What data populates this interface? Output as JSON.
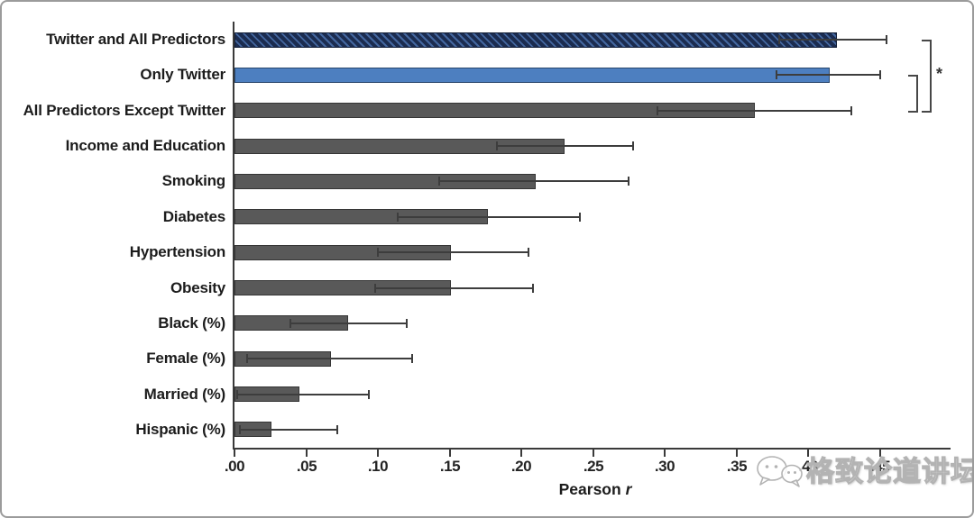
{
  "watermark": {
    "text": "格致论道讲坛",
    "logo": "speech-bubbles-logo"
  },
  "chart_data": {
    "type": "bar",
    "orientation": "horizontal",
    "title": "",
    "xlabel": "Pearson r",
    "xlabel_prefix": "Pearson",
    "xlabel_var": "r",
    "xlim": [
      0,
      0.5
    ],
    "grid": false,
    "xticks": [
      {
        "label": ".00",
        "value": 0.0
      },
      {
        "label": ".05",
        "value": 0.05
      },
      {
        "label": ".10",
        "value": 0.1
      },
      {
        "label": ".15",
        "value": 0.15
      },
      {
        "label": ".20",
        "value": 0.2
      },
      {
        "label": ".25",
        "value": 0.25
      },
      {
        "label": ".30",
        "value": 0.3
      },
      {
        "label": ".35",
        "value": 0.35
      },
      {
        "label": ".40",
        "value": 0.4
      },
      {
        "label": ".45",
        "value": 0.45
      }
    ],
    "bars": [
      {
        "label": "Twitter and All Predictors",
        "value": 0.42,
        "ci": [
          0.38,
          0.455
        ],
        "style": "navy-hatched"
      },
      {
        "label": "Only Twitter",
        "value": 0.415,
        "ci": [
          0.378,
          0.45
        ],
        "style": "blue"
      },
      {
        "label": "All Predictors Except Twitter",
        "value": 0.363,
        "ci": [
          0.295,
          0.43
        ],
        "style": "gray"
      },
      {
        "label": "Income and Education",
        "value": 0.23,
        "ci": [
          0.183,
          0.278
        ],
        "style": "gray"
      },
      {
        "label": "Smoking",
        "value": 0.21,
        "ci": [
          0.143,
          0.275
        ],
        "style": "gray"
      },
      {
        "label": "Diabetes",
        "value": 0.177,
        "ci": [
          0.114,
          0.241
        ],
        "style": "gray"
      },
      {
        "label": "Hypertension",
        "value": 0.151,
        "ci": [
          0.1,
          0.205
        ],
        "style": "gray"
      },
      {
        "label": "Obesity",
        "value": 0.151,
        "ci": [
          0.098,
          0.208
        ],
        "style": "gray"
      },
      {
        "label": "Black (%)",
        "value": 0.079,
        "ci": [
          0.039,
          0.12
        ],
        "style": "gray"
      },
      {
        "label": "Female (%)",
        "value": 0.067,
        "ci": [
          0.009,
          0.124
        ],
        "style": "gray"
      },
      {
        "label": "Married (%)",
        "value": 0.045,
        "ci": [
          0.002,
          0.094
        ],
        "style": "gray"
      },
      {
        "label": "Hispanic (%)",
        "value": 0.026,
        "ci": [
          0.004,
          0.072
        ],
        "style": "gray"
      }
    ],
    "significance": {
      "symbol": "*",
      "comparisons": [
        {
          "from": "Twitter and All Predictors",
          "to": "All Predictors Except Twitter",
          "bracket": "outer"
        },
        {
          "from": "Only Twitter",
          "to": "All Predictors Except Twitter",
          "bracket": "inner"
        }
      ]
    },
    "colors": {
      "navy": "#1b2c50",
      "navy_hatch": "#44679f",
      "blue": "#4d7fc0",
      "blue_border": "#29466b",
      "gray": "#595959",
      "gray_border": "#353535",
      "error_bar": "#3d3d3d",
      "axis": "#3a3a3a"
    },
    "legend": null
  }
}
